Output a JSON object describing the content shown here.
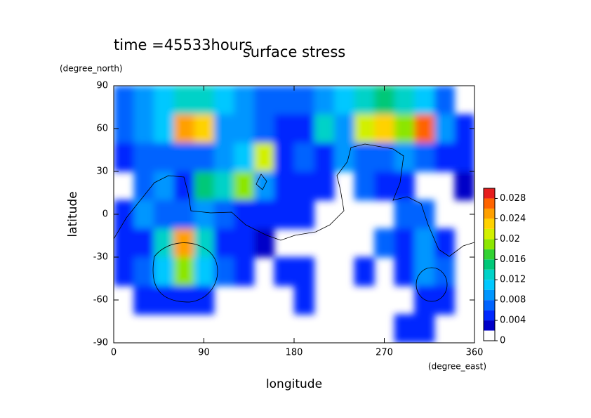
{
  "chart_data": {
    "type": "heatmap",
    "title": "surface stress",
    "subtitle": "time =45533hours",
    "x_label": "longitude",
    "x_unit": "(degree_east)",
    "y_label": "latitude",
    "y_unit": "(degree_north)",
    "xlim": [
      0,
      360
    ],
    "xticks": [
      0,
      90,
      180,
      270,
      360
    ],
    "ylim": [
      -90,
      90
    ],
    "yticks": [
      -90,
      -60,
      -30,
      0,
      30,
      60,
      90
    ],
    "x": [
      0,
      20,
      40,
      60,
      80,
      100,
      120,
      140,
      160,
      180,
      200,
      220,
      240,
      260,
      280,
      300,
      320,
      340,
      360
    ],
    "y": [
      90,
      70,
      50,
      30,
      10,
      -10,
      -30,
      -50,
      -70,
      -90
    ],
    "z": [
      [
        0.006,
        0.008,
        0.01,
        0.012,
        0.012,
        0.01,
        0.008,
        0.006,
        0.006,
        0.006,
        0.008,
        0.01,
        0.012,
        0.014,
        0.012,
        0.01,
        0.006,
        null
      ],
      [
        0.006,
        0.008,
        0.01,
        0.024,
        0.022,
        0.008,
        0.008,
        0.006,
        0.004,
        0.004,
        0.012,
        0.008,
        0.02,
        0.022,
        0.018,
        0.026,
        0.008,
        0.004
      ],
      [
        0.004,
        0.006,
        0.006,
        0.006,
        0.006,
        0.008,
        0.01,
        0.02,
        0.004,
        0.006,
        0.004,
        0.008,
        0.006,
        0.006,
        0.008,
        0.006,
        0.004,
        0.004
      ],
      [
        null,
        0.006,
        0.008,
        0.004,
        0.014,
        0.012,
        0.018,
        0.008,
        0.004,
        0.004,
        0.004,
        null,
        0.006,
        0.004,
        0.004,
        null,
        null,
        0.002
      ],
      [
        0.004,
        0.008,
        0.006,
        0.006,
        0.008,
        0.006,
        0.004,
        0.004,
        0.004,
        0.004,
        null,
        null,
        null,
        null,
        0.006,
        0.006,
        null,
        null
      ],
      [
        0.004,
        0.004,
        0.012,
        0.024,
        0.012,
        0.004,
        0.004,
        0.002,
        null,
        null,
        null,
        null,
        null,
        0.006,
        0.004,
        0.008,
        0.004,
        null
      ],
      [
        0.004,
        0.006,
        0.01,
        0.018,
        0.01,
        0.006,
        0.004,
        null,
        0.004,
        0.004,
        null,
        null,
        0.004,
        null,
        0.004,
        0.008,
        0.006,
        null
      ],
      [
        null,
        0.004,
        0.004,
        0.004,
        0.004,
        null,
        null,
        null,
        null,
        0.004,
        null,
        null,
        null,
        null,
        null,
        0.004,
        0.004,
        null
      ],
      [
        null,
        null,
        null,
        null,
        null,
        null,
        null,
        null,
        null,
        null,
        null,
        null,
        null,
        null,
        0.004,
        0.004,
        null,
        null
      ]
    ],
    "levels": [
      0,
      0.002,
      0.004,
      0.006,
      0.008,
      0.01,
      0.012,
      0.014,
      0.016,
      0.018,
      0.02,
      0.022,
      0.024,
      0.026,
      0.028,
      0.03
    ],
    "colors": [
      "#ffffff",
      "#0000c8",
      "#0028ff",
      "#0064ff",
      "#0096ff",
      "#00c8ff",
      "#00d2c8",
      "#00c878",
      "#32d232",
      "#8ce600",
      "#d2f000",
      "#ffd200",
      "#ffa000",
      "#ff6400",
      "#e61e1e"
    ],
    "colorbar_ticks": [
      0,
      0.004,
      0.008,
      0.012,
      0.016,
      0.02,
      0.024,
      0.028
    ]
  }
}
